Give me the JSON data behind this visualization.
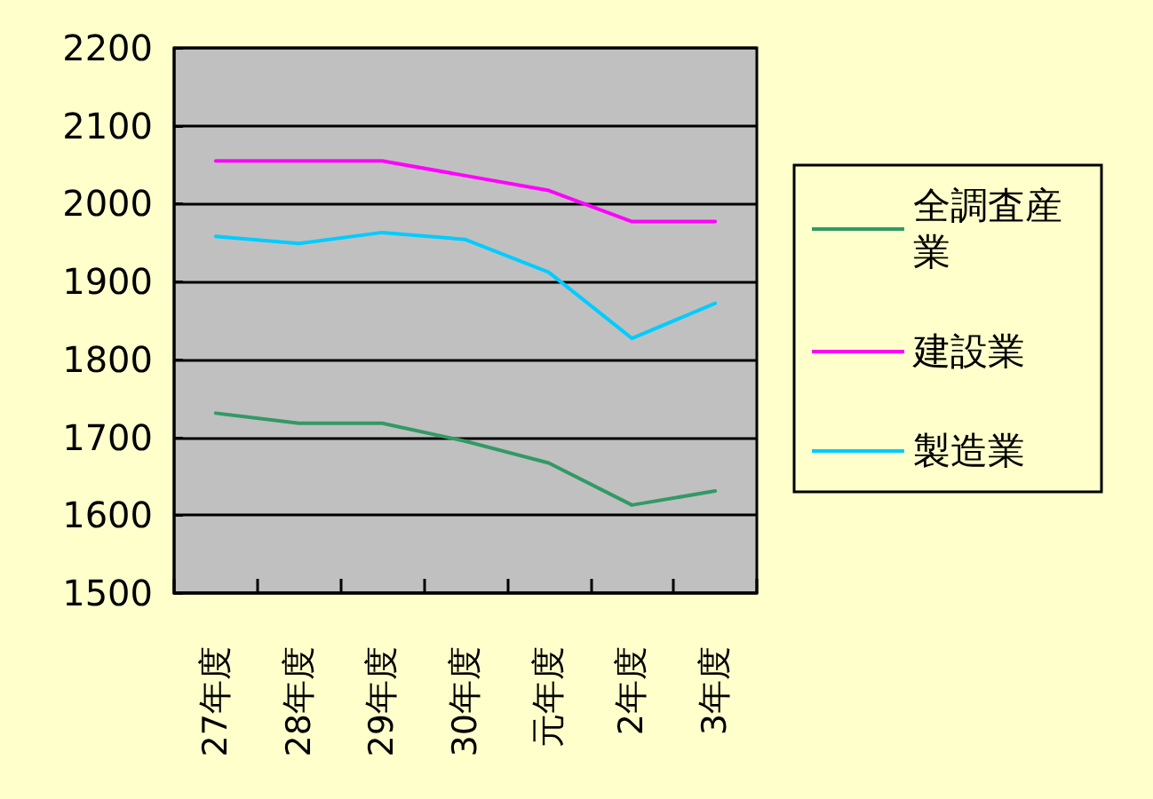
{
  "chart_data": {
    "type": "line",
    "categories": [
      "27年度",
      "28年度",
      "29年度",
      "30年度",
      "元年度",
      "2年度",
      "3年度"
    ],
    "series": [
      {
        "name": "全調査産業",
        "color": "#339966",
        "values": [
          1731,
          1718,
          1718,
          1695,
          1667,
          1613,
          1631
        ]
      },
      {
        "name": "建設業",
        "color": "#ff00ff",
        "values": [
          2055,
          2055,
          2055,
          2036,
          2017,
          1977,
          1977
        ]
      },
      {
        "name": "製造業",
        "color": "#00ccff",
        "values": [
          1958,
          1949,
          1963,
          1954,
          1912,
          1827,
          1872
        ]
      }
    ],
    "ylim": [
      1500,
      2200
    ],
    "yticks": [
      1500,
      1600,
      1700,
      1800,
      1900,
      2000,
      2100,
      2200
    ],
    "grid": "y",
    "legend": "right",
    "marker": "none",
    "line_style": "solid"
  }
}
